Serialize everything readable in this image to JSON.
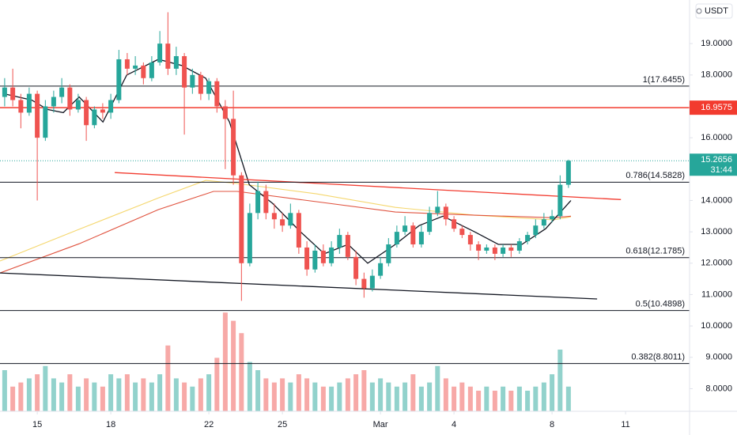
{
  "chart_data": {
    "type": "candlestick",
    "currency": "USDT",
    "up_color": "#26a69a",
    "down_color": "#ef5350",
    "xlim": [
      13.48,
      41.61
    ],
    "ylim": [
      7.28,
      20.39
    ],
    "volume_lim": [
      0,
      100
    ],
    "grid": false,
    "xticks": [
      15,
      18,
      22,
      25,
      {
        "value": 29,
        "label": "Mar"
      },
      {
        "value": 32,
        "label": "4"
      },
      {
        "value": 36,
        "label": "8"
      },
      {
        "value": 39,
        "label": "11"
      }
    ],
    "yticks": [
      {
        "value": 19,
        "label": "19.0000"
      },
      {
        "value": 18,
        "label": "18.0000"
      },
      {
        "value": 16,
        "label": "16.0000"
      },
      {
        "value": 14,
        "label": "14.0000"
      },
      {
        "value": 13,
        "label": "13.0000"
      },
      {
        "value": 12,
        "label": "12.0000"
      },
      {
        "value": 11,
        "label": "11.0000"
      },
      {
        "value": 10,
        "label": "10.0000"
      },
      {
        "value": 9,
        "label": "9.0000"
      },
      {
        "value": 8,
        "label": "8.0000"
      }
    ],
    "candles": {
      "x": [
        13.67,
        14,
        14.33,
        14.67,
        15,
        15.33,
        15.67,
        16,
        16.33,
        16.67,
        17,
        17.33,
        17.67,
        18,
        18.33,
        18.67,
        19,
        19.33,
        19.67,
        20,
        20.33,
        20.67,
        21,
        21.33,
        21.67,
        22,
        22.33,
        22.67,
        23,
        23.33,
        23.67,
        24,
        24.33,
        24.67,
        25,
        25.33,
        25.67,
        26,
        26.33,
        26.67,
        27,
        27.33,
        27.67,
        28,
        28.33,
        28.67,
        29,
        29.33,
        29.67,
        30,
        30.33,
        30.67,
        31,
        31.33,
        31.67,
        32,
        32.33,
        32.67,
        33,
        33.33,
        33.67,
        34,
        34.33,
        34.67,
        35,
        35.33,
        35.67,
        36,
        36.33,
        36.67
      ],
      "open": [
        17.3,
        17.6,
        17.2,
        16.8,
        17.4,
        16.0,
        17.0,
        17.3,
        17.6,
        16.9,
        17.2,
        16.4,
        16.9,
        16.8,
        17.2,
        18.5,
        18.2,
        18.3,
        17.9,
        18.4,
        19.0,
        18.2,
        18.6,
        17.6,
        18.0,
        17.4,
        17.8,
        17.0,
        16.6,
        14.8,
        12.0,
        13.6,
        14.3,
        13.6,
        13.4,
        13.2,
        13.6,
        12.5,
        11.8,
        12.4,
        12.0,
        12.5,
        12.9,
        12.2,
        11.5,
        11.2,
        11.6,
        12.0,
        12.6,
        13.0,
        13.2,
        12.6,
        13.0,
        13.6,
        13.8,
        13.4,
        13.1,
        12.9,
        12.6,
        12.4,
        12.5,
        12.3,
        12.5,
        12.4,
        12.7,
        12.9,
        13.2,
        13.4,
        13.5,
        14.5
      ],
      "high": [
        17.9,
        18.2,
        17.4,
        17.6,
        17.5,
        17.2,
        17.5,
        17.9,
        17.7,
        17.4,
        17.3,
        17.0,
        17.1,
        17.4,
        18.8,
        18.7,
        18.6,
        18.4,
        18.6,
        19.4,
        20.0,
        18.9,
        18.7,
        18.2,
        18.1,
        17.9,
        17.9,
        17.2,
        17.5,
        14.9,
        13.9,
        14.6,
        14.5,
        13.9,
        13.6,
        13.9,
        13.7,
        12.7,
        12.6,
        12.6,
        12.7,
        13.1,
        13.0,
        12.4,
        11.7,
        11.8,
        12.2,
        12.8,
        13.2,
        13.5,
        13.3,
        13.2,
        13.8,
        14.3,
        13.9,
        13.5,
        13.2,
        13.0,
        12.7,
        12.6,
        12.6,
        12.6,
        12.6,
        12.8,
        13.0,
        13.4,
        13.6,
        13.7,
        14.8,
        15.3
      ],
      "low": [
        17.0,
        17.0,
        16.3,
        16.7,
        14.0,
        15.9,
        16.8,
        17.1,
        16.7,
        16.8,
        15.9,
        16.3,
        16.6,
        16.6,
        17.1,
        18.0,
        18.0,
        17.7,
        17.8,
        18.3,
        18.0,
        18.0,
        16.1,
        17.4,
        17.2,
        17.2,
        16.8,
        15.0,
        14.5,
        10.8,
        11.9,
        13.4,
        13.4,
        13.1,
        13.0,
        13.1,
        12.3,
        11.6,
        11.7,
        11.9,
        11.9,
        12.3,
        12.1,
        11.3,
        10.9,
        11.1,
        11.5,
        11.9,
        12.5,
        12.9,
        12.5,
        12.5,
        12.9,
        13.5,
        13.2,
        13.0,
        12.8,
        12.4,
        12.1,
        12.3,
        12.1,
        12.2,
        12.2,
        12.3,
        12.6,
        12.8,
        13.1,
        13.3,
        13.4,
        14.4
      ],
      "close": [
        17.6,
        17.2,
        16.8,
        17.4,
        16.0,
        17.0,
        17.3,
        17.6,
        16.9,
        17.2,
        16.4,
        16.9,
        16.8,
        17.2,
        18.5,
        18.2,
        18.3,
        17.9,
        18.4,
        19.0,
        18.2,
        18.6,
        17.6,
        18.0,
        17.4,
        17.8,
        17.0,
        16.6,
        14.8,
        12.0,
        13.6,
        14.3,
        13.6,
        13.4,
        13.2,
        13.6,
        12.5,
        11.8,
        12.4,
        12.0,
        12.5,
        12.9,
        12.2,
        11.5,
        11.2,
        11.6,
        12.0,
        12.6,
        13.0,
        13.2,
        12.6,
        13.0,
        13.6,
        13.8,
        13.4,
        13.1,
        12.9,
        12.6,
        12.4,
        12.5,
        12.3,
        12.5,
        12.4,
        12.7,
        12.9,
        13.2,
        13.4,
        13.5,
        14.5,
        15.2656
      ],
      "volume": [
        10,
        6,
        7,
        8,
        9,
        11,
        8,
        7,
        9,
        6,
        8,
        7,
        6,
        9,
        8,
        9,
        7,
        8,
        7,
        9,
        16,
        8,
        7,
        6,
        8,
        9,
        13,
        24,
        22,
        19,
        12,
        10,
        8,
        7,
        8,
        7,
        9,
        8,
        7,
        6,
        6,
        7,
        8,
        9,
        10,
        7,
        8,
        7,
        6,
        7,
        9,
        6,
        7,
        11,
        8,
        6,
        7,
        6,
        5,
        6,
        5,
        6,
        5,
        6,
        5,
        6,
        7,
        9,
        15,
        6
      ]
    },
    "lines": [
      {
        "color": "#f5d76e",
        "x": [
          13.48,
          16.71,
          19.94,
          21.87,
          23.16,
          26.39,
          29.61,
          32.84,
          36.06,
          36.77
        ],
        "values": [
          12.07,
          13.08,
          14.08,
          14.64,
          14.54,
          14.21,
          13.78,
          13.53,
          13.38,
          13.48
        ]
      },
      {
        "color": "#e0533f",
        "x": [
          13.48,
          16.71,
          19.94,
          22.19,
          23.16,
          26.39,
          29.61,
          32.84,
          36.06,
          36.77
        ],
        "values": [
          11.69,
          12.62,
          13.71,
          14.29,
          14.29,
          13.96,
          13.63,
          13.53,
          13.45,
          13.5
        ]
      },
      {
        "color": "#131722",
        "x": [
          13.65,
          14.77,
          15.42,
          16.06,
          16.71,
          17.68,
          18.65,
          19.94,
          20.9,
          21.87,
          22.84,
          23.65,
          24.61,
          25.74,
          26.71,
          27.68,
          28.48,
          29.61,
          30.58,
          31.55,
          32.84,
          33.81,
          34.77,
          35.74,
          36.77
        ],
        "values": [
          17.4,
          17.2,
          16.9,
          16.8,
          17.3,
          16.5,
          18.0,
          18.5,
          18.3,
          17.9,
          16.5,
          14.5,
          13.9,
          13.0,
          12.3,
          12.6,
          12.0,
          12.6,
          13.2,
          13.5,
          13.0,
          12.6,
          12.6,
          13.1,
          14.0
        ]
      }
    ],
    "trendlines": [
      {
        "color": "#f23b2f",
        "x": [
          18.16,
          38.81
        ],
        "values": [
          14.89,
          14.03
        ]
      },
      {
        "color": "#131722",
        "x": [
          13.48,
          37.84
        ],
        "values": [
          11.69,
          10.86
        ]
      }
    ],
    "fib_levels": [
      {
        "value": 17.6455,
        "label": "1(17.6455)"
      },
      {
        "value": 14.5828,
        "label": "0.786(14.5828)"
      },
      {
        "value": 12.1785,
        "label": "0.618(12.1785)"
      },
      {
        "value": 10.4898,
        "label": "0.5(10.4898)"
      },
      {
        "value": 8.8011,
        "label": "0.382(8.8011)"
      }
    ],
    "resistance": {
      "value": 16.9575,
      "label": "16.9575",
      "color": "#f23b2f"
    },
    "last_price": {
      "value": 15.2656,
      "label": "15.2656",
      "countdown": "31:44",
      "color": "#26a69a"
    }
  }
}
